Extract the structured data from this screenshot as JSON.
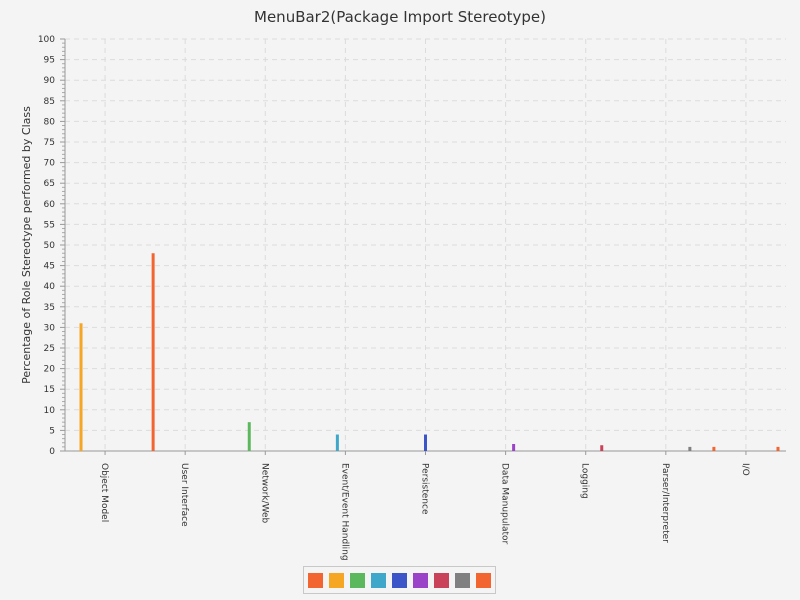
{
  "chart_data": {
    "type": "bar",
    "title": "MenuBar2(Package Import Stereotype)",
    "xlabel": "",
    "ylabel": "Percentage of Role Stereotype performed by Class",
    "ylim": [
      0,
      100
    ],
    "yticks": [
      0,
      5,
      10,
      15,
      20,
      25,
      30,
      35,
      40,
      45,
      50,
      55,
      60,
      65,
      70,
      75,
      80,
      85,
      90,
      95,
      100
    ],
    "grid": true,
    "legend_position": "bottom",
    "categories": [
      "Object Model",
      "User Interface",
      "Network/Web",
      "Event/Event Handling",
      "Persistence",
      "Data Manupulator",
      "Logging",
      "Parser/Interpreter",
      "I/O"
    ],
    "series": [
      {
        "color": "#f26430",
        "values": [
          0,
          48,
          0,
          0,
          0,
          0,
          0,
          0,
          1
        ]
      },
      {
        "color": "#f5a623",
        "values": [
          31,
          0,
          0,
          0,
          0,
          0,
          0,
          0,
          0
        ]
      },
      {
        "color": "#5cb85c",
        "values": [
          0,
          0,
          7,
          0,
          0,
          0,
          0,
          0,
          0
        ]
      },
      {
        "color": "#3fa7c9",
        "values": [
          0,
          0,
          0,
          4,
          0,
          0,
          0,
          0,
          0
        ]
      },
      {
        "color": "#3b55c9",
        "values": [
          0,
          0,
          0,
          0,
          4,
          0,
          0,
          0,
          0
        ]
      },
      {
        "color": "#9a42c8",
        "values": [
          0,
          0,
          0,
          0,
          0,
          1.7,
          0,
          0,
          0
        ]
      },
      {
        "color": "#c9425a",
        "values": [
          0,
          0,
          0,
          0,
          0,
          0,
          1.4,
          0,
          0
        ]
      },
      {
        "color": "#808080",
        "values": [
          0,
          0,
          0,
          0,
          0,
          0,
          0,
          1,
          0
        ]
      },
      {
        "color": "#f26430",
        "values": [
          0,
          0,
          0,
          0,
          0,
          0,
          0,
          0,
          1
        ]
      }
    ]
  }
}
